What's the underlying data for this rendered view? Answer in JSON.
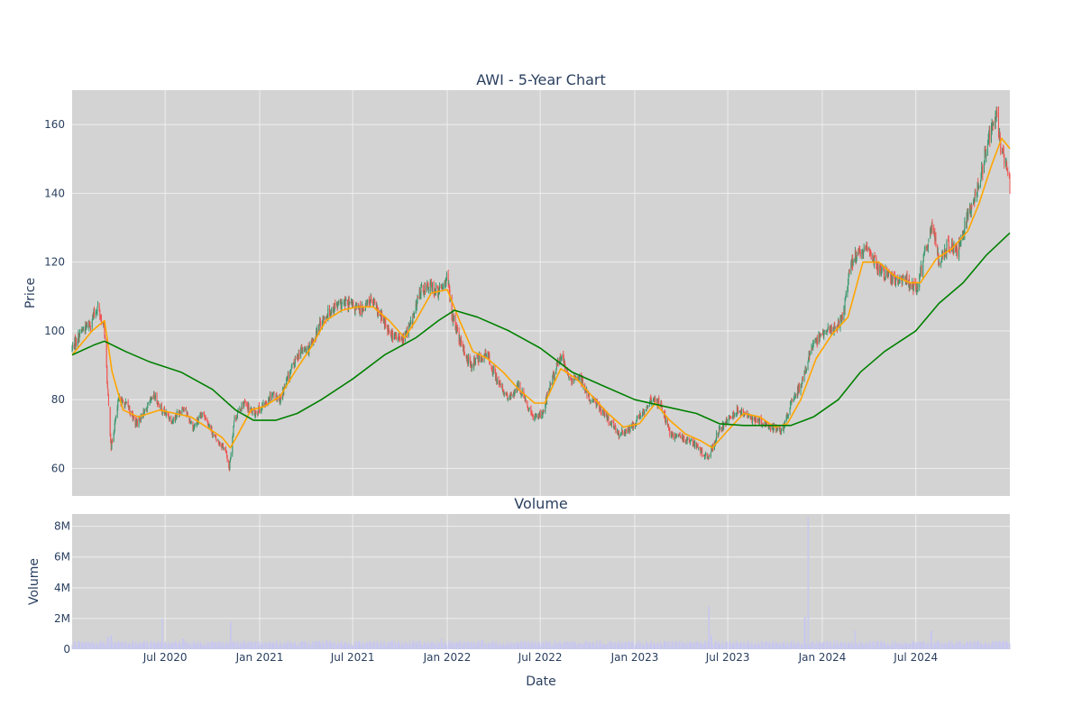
{
  "colors": {
    "plot_bg": "#d3d3d3",
    "grid": "#eeeeee",
    "increasing": "#3d9970",
    "decreasing": "#ef5350",
    "ma_short": "#ffa500",
    "ma_long": "#008000",
    "volume": "#c7c7f0",
    "text": "#2a3f5f"
  },
  "chart_data": [
    {
      "type": "candlestick",
      "title": "AWI - 5-Year Chart",
      "ylabel": "Price",
      "ylim": [
        52,
        170
      ],
      "yticks": [
        60,
        80,
        100,
        120,
        140,
        160
      ],
      "grid": true,
      "x_range": [
        "2020-01-02",
        "2024-12-31"
      ],
      "close_series_anchors": [
        [
          "2020-01-02",
          95
        ],
        [
          "2020-01-20",
          100
        ],
        [
          "2020-02-05",
          102
        ],
        [
          "2020-02-21",
          107
        ],
        [
          "2020-03-05",
          100
        ],
        [
          "2020-03-12",
          80
        ],
        [
          "2020-03-18",
          66
        ],
        [
          "2020-03-25",
          73
        ],
        [
          "2020-04-02",
          80
        ],
        [
          "2020-04-20",
          78
        ],
        [
          "2020-05-05",
          73
        ],
        [
          "2020-05-20",
          76
        ],
        [
          "2020-06-10",
          81
        ],
        [
          "2020-06-25",
          77
        ],
        [
          "2020-07-15",
          74
        ],
        [
          "2020-08-05",
          78
        ],
        [
          "2020-08-25",
          72
        ],
        [
          "2020-09-15",
          76
        ],
        [
          "2020-10-05",
          69
        ],
        [
          "2020-10-25",
          66
        ],
        [
          "2020-11-03",
          60
        ],
        [
          "2020-11-12",
          74
        ],
        [
          "2020-11-30",
          79
        ],
        [
          "2020-12-20",
          76
        ],
        [
          "2021-01-08",
          78
        ],
        [
          "2021-01-25",
          82
        ],
        [
          "2021-02-10",
          80
        ],
        [
          "2021-03-01",
          88
        ],
        [
          "2021-03-20",
          94
        ],
        [
          "2021-04-10",
          95
        ],
        [
          "2021-05-01",
          103
        ],
        [
          "2021-05-25",
          107
        ],
        [
          "2021-06-20",
          108
        ],
        [
          "2021-07-15",
          106
        ],
        [
          "2021-08-05",
          109
        ],
        [
          "2021-08-25",
          104
        ],
        [
          "2021-09-15",
          99
        ],
        [
          "2021-10-05",
          97
        ],
        [
          "2021-10-25",
          103
        ],
        [
          "2021-11-10",
          112
        ],
        [
          "2021-11-30",
          113
        ],
        [
          "2021-12-15",
          111
        ],
        [
          "2022-01-01",
          116
        ],
        [
          "2022-01-10",
          105
        ],
        [
          "2022-01-25",
          97
        ],
        [
          "2022-02-15",
          90
        ],
        [
          "2022-03-01",
          92
        ],
        [
          "2022-03-20",
          93
        ],
        [
          "2022-04-10",
          85
        ],
        [
          "2022-05-01",
          80
        ],
        [
          "2022-05-20",
          84
        ],
        [
          "2022-06-15",
          75
        ],
        [
          "2022-07-05",
          76
        ],
        [
          "2022-07-20",
          84
        ],
        [
          "2022-08-10",
          93
        ],
        [
          "2022-08-30",
          85
        ],
        [
          "2022-09-15",
          87
        ],
        [
          "2022-10-01",
          81
        ],
        [
          "2022-10-20",
          79
        ],
        [
          "2022-11-10",
          74
        ],
        [
          "2022-12-01",
          70
        ],
        [
          "2022-12-20",
          71
        ],
        [
          "2023-01-10",
          75
        ],
        [
          "2023-02-01",
          80
        ],
        [
          "2023-02-20",
          79
        ],
        [
          "2023-03-10",
          70
        ],
        [
          "2023-03-30",
          69
        ],
        [
          "2023-04-20",
          68
        ],
        [
          "2023-05-10",
          65
        ],
        [
          "2023-05-25",
          63
        ],
        [
          "2023-06-10",
          70
        ],
        [
          "2023-07-01",
          74
        ],
        [
          "2023-07-20",
          77
        ],
        [
          "2023-08-10",
          75
        ],
        [
          "2023-08-30",
          74
        ],
        [
          "2023-09-20",
          72
        ],
        [
          "2023-10-15",
          71
        ],
        [
          "2023-11-01",
          79
        ],
        [
          "2023-11-20",
          84
        ],
        [
          "2023-12-10",
          95
        ],
        [
          "2024-01-01",
          99
        ],
        [
          "2024-01-25",
          101
        ],
        [
          "2024-02-10",
          104
        ],
        [
          "2024-02-25",
          120
        ],
        [
          "2024-03-10",
          122
        ],
        [
          "2024-03-30",
          124
        ],
        [
          "2024-04-15",
          119
        ],
        [
          "2024-05-05",
          116
        ],
        [
          "2024-05-25",
          114
        ],
        [
          "2024-06-15",
          115
        ],
        [
          "2024-07-01",
          112
        ],
        [
          "2024-07-15",
          120
        ],
        [
          "2024-08-01",
          131
        ],
        [
          "2024-08-15",
          120
        ],
        [
          "2024-09-01",
          125
        ],
        [
          "2024-09-20",
          123
        ],
        [
          "2024-10-05",
          131
        ],
        [
          "2024-10-20",
          138
        ],
        [
          "2024-11-05",
          145
        ],
        [
          "2024-11-20",
          157
        ],
        [
          "2024-12-05",
          162
        ],
        [
          "2024-12-15",
          152
        ],
        [
          "2024-12-31",
          143
        ]
      ],
      "series": [
        {
          "style": "orange-line",
          "points": [
            [
              "2020-01-02",
              93
            ],
            [
              "2020-02-10",
              100
            ],
            [
              "2020-03-05",
              103
            ],
            [
              "2020-03-20",
              88
            ],
            [
              "2020-04-10",
              77
            ],
            [
              "2020-05-10",
              75
            ],
            [
              "2020-06-20",
              77
            ],
            [
              "2020-07-20",
              76
            ],
            [
              "2020-08-20",
              75
            ],
            [
              "2020-09-20",
              72
            ],
            [
              "2020-10-20",
              69
            ],
            [
              "2020-11-05",
              66
            ],
            [
              "2020-11-20",
              70
            ],
            [
              "2020-12-15",
              77
            ],
            [
              "2021-01-10",
              78
            ],
            [
              "2021-02-10",
              81
            ],
            [
              "2021-03-10",
              88
            ],
            [
              "2021-04-10",
              95
            ],
            [
              "2021-05-10",
              103
            ],
            [
              "2021-06-10",
              106
            ],
            [
              "2021-07-10",
              107
            ],
            [
              "2021-08-10",
              107
            ],
            [
              "2021-09-10",
              103
            ],
            [
              "2021-10-10",
              98
            ],
            [
              "2021-11-01",
              103
            ],
            [
              "2021-12-01",
              111
            ],
            [
              "2022-01-01",
              112
            ],
            [
              "2022-01-25",
              103
            ],
            [
              "2022-02-20",
              94
            ],
            [
              "2022-03-20",
              92
            ],
            [
              "2022-04-20",
              88
            ],
            [
              "2022-05-20",
              83
            ],
            [
              "2022-06-20",
              79
            ],
            [
              "2022-07-10",
              79
            ],
            [
              "2022-08-10",
              89
            ],
            [
              "2022-09-10",
              86
            ],
            [
              "2022-10-10",
              81
            ],
            [
              "2022-11-10",
              76
            ],
            [
              "2022-12-10",
              72
            ],
            [
              "2023-01-10",
              73
            ],
            [
              "2023-02-10",
              79
            ],
            [
              "2023-03-10",
              74
            ],
            [
              "2023-04-10",
              70
            ],
            [
              "2023-05-10",
              68
            ],
            [
              "2023-06-01",
              66
            ],
            [
              "2023-07-01",
              71
            ],
            [
              "2023-08-01",
              76
            ],
            [
              "2023-09-01",
              75
            ],
            [
              "2023-10-01",
              72
            ],
            [
              "2023-10-25",
              73
            ],
            [
              "2023-11-20",
              80
            ],
            [
              "2023-12-20",
              92
            ],
            [
              "2024-01-20",
              99
            ],
            [
              "2024-02-20",
              104
            ],
            [
              "2024-03-20",
              120
            ],
            [
              "2024-04-20",
              120
            ],
            [
              "2024-05-20",
              116
            ],
            [
              "2024-06-20",
              114
            ],
            [
              "2024-07-10",
              114
            ],
            [
              "2024-08-10",
              121
            ],
            [
              "2024-09-10",
              124
            ],
            [
              "2024-10-10",
              129
            ],
            [
              "2024-11-01",
              137
            ],
            [
              "2024-11-25",
              148
            ],
            [
              "2024-12-15",
              156
            ],
            [
              "2024-12-31",
              153
            ]
          ]
        },
        {
          "style": "green-line",
          "points": [
            [
              "2020-01-02",
              93
            ],
            [
              "2020-02-15",
              96
            ],
            [
              "2020-03-05",
              97
            ],
            [
              "2020-04-15",
              94
            ],
            [
              "2020-06-01",
              91
            ],
            [
              "2020-08-01",
              88
            ],
            [
              "2020-10-01",
              83
            ],
            [
              "2020-11-15",
              77
            ],
            [
              "2020-12-20",
              74
            ],
            [
              "2021-02-01",
              74
            ],
            [
              "2021-03-15",
              76
            ],
            [
              "2021-05-01",
              80
            ],
            [
              "2021-07-01",
              86
            ],
            [
              "2021-09-01",
              93
            ],
            [
              "2021-11-01",
              98
            ],
            [
              "2021-12-15",
              103
            ],
            [
              "2022-01-15",
              106
            ],
            [
              "2022-03-01",
              104
            ],
            [
              "2022-05-01",
              100
            ],
            [
              "2022-07-01",
              95
            ],
            [
              "2022-09-01",
              88
            ],
            [
              "2022-11-01",
              84
            ],
            [
              "2023-01-01",
              80
            ],
            [
              "2023-03-01",
              78
            ],
            [
              "2023-05-01",
              76
            ],
            [
              "2023-06-15",
              73
            ],
            [
              "2023-08-01",
              72.5
            ],
            [
              "2023-11-01",
              72.5
            ],
            [
              "2023-12-15",
              75
            ],
            [
              "2024-02-01",
              80
            ],
            [
              "2024-03-15",
              88
            ],
            [
              "2024-05-01",
              94
            ],
            [
              "2024-07-01",
              100
            ],
            [
              "2024-08-15",
              108
            ],
            [
              "2024-10-01",
              114
            ],
            [
              "2024-11-15",
              122
            ],
            [
              "2024-12-31",
              128.5
            ]
          ]
        }
      ]
    },
    {
      "type": "bar",
      "title": "Volume",
      "xlabel": "Date",
      "ylabel": "Volume",
      "ylim": [
        0,
        8800000
      ],
      "yticks": [
        0,
        2000000,
        4000000,
        6000000,
        8000000
      ],
      "ytick_labels": [
        "0",
        "2M",
        "4M",
        "6M",
        "8M"
      ],
      "xticks": [
        "2020-07-01",
        "2021-01-01",
        "2021-07-01",
        "2022-01-01",
        "2022-07-01",
        "2023-01-01",
        "2023-07-01",
        "2024-01-01",
        "2024-07-01"
      ],
      "xtick_labels": [
        "Jul 2020",
        "Jan 2021",
        "Jul 2021",
        "Jan 2022",
        "Jul 2022",
        "Jan 2023",
        "Jul 2023",
        "Jan 2024",
        "Jul 2024"
      ],
      "baseline_volume": 400000,
      "spikes": [
        [
          "2020-03-12",
          800000
        ],
        [
          "2020-03-18",
          900000
        ],
        [
          "2020-06-26",
          2000000
        ],
        [
          "2020-08-05",
          700000
        ],
        [
          "2020-11-06",
          1800000
        ],
        [
          "2021-05-10",
          600000
        ],
        [
          "2021-12-20",
          700000
        ],
        [
          "2022-03-10",
          600000
        ],
        [
          "2023-05-26",
          2800000
        ],
        [
          "2023-05-30",
          900000
        ],
        [
          "2023-11-28",
          2100000
        ],
        [
          "2023-12-04",
          8600000
        ],
        [
          "2024-03-04",
          1200000
        ],
        [
          "2024-07-31",
          1200000
        ]
      ]
    }
  ]
}
